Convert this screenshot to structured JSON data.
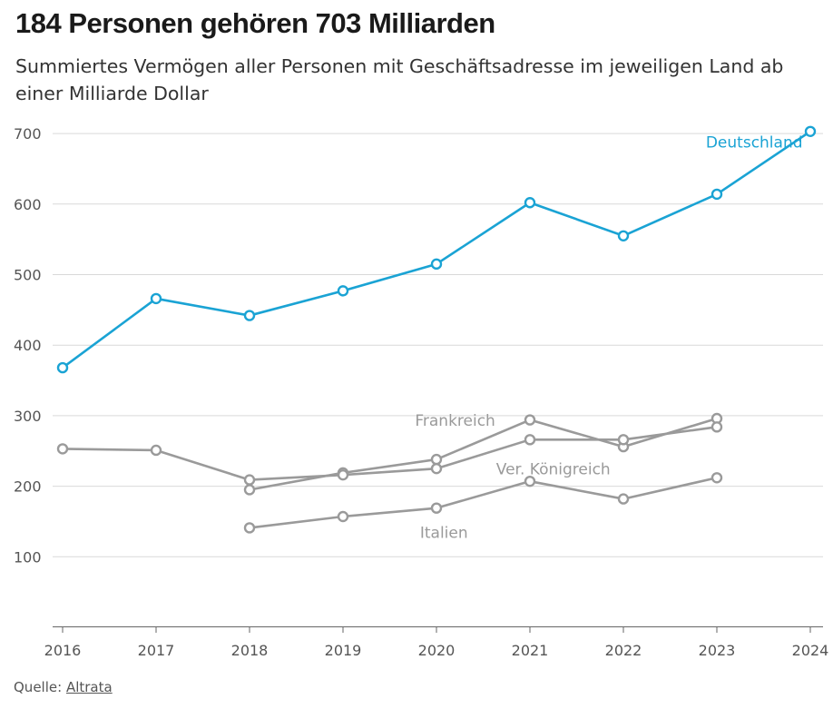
{
  "header": {
    "title": "184 Personen gehören 703 Milliarden",
    "subtitle": "Summiertes Vermögen aller Personen mit Geschäftsadresse im jeweiligen Land ab einer Milliarde Dollar"
  },
  "footer": {
    "source_label": "Quelle:",
    "source_link": "Altrata"
  },
  "chart_data": {
    "type": "line",
    "title": "184 Personen gehören 703 Milliarden",
    "subtitle": "Summiertes Vermögen aller Personen mit Geschäftsadresse im jeweiligen Land ab einer Milliarde Dollar",
    "x": [
      2016,
      2017,
      2018,
      2019,
      2020,
      2021,
      2022,
      2023,
      2024
    ],
    "ylim": [
      0,
      700
    ],
    "yticks": [
      100,
      200,
      300,
      400,
      500,
      600,
      700
    ],
    "grid": true,
    "legend": "inline labels",
    "series": [
      {
        "name": "Deutschland",
        "color": "#1aa3d4",
        "values": [
          368,
          466,
          442,
          477,
          515,
          602,
          555,
          614,
          703
        ]
      },
      {
        "name": "Frankreich",
        "color": "#9a9a9a",
        "values": [
          null,
          null,
          195,
          219,
          238,
          294,
          256,
          296,
          null
        ]
      },
      {
        "name": "Ver. Königreich",
        "color": "#9a9a9a",
        "values": [
          253,
          251,
          209,
          216,
          225,
          266,
          266,
          284,
          null
        ]
      },
      {
        "name": "Italien",
        "color": "#9a9a9a",
        "values": [
          null,
          null,
          141,
          157,
          169,
          207,
          182,
          212,
          null
        ]
      }
    ]
  }
}
